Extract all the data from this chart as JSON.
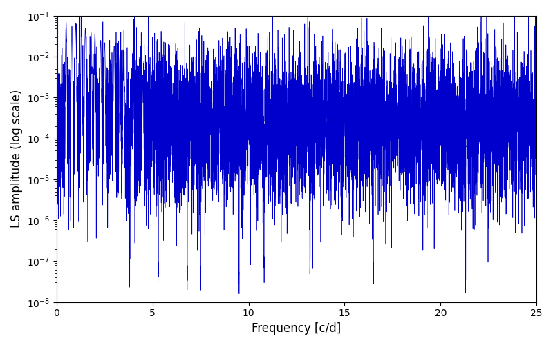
{
  "xlabel": "Frequency [c/d]",
  "ylabel": "LS amplitude (log scale)",
  "xlim": [
    0,
    25
  ],
  "ylim": [
    1e-08,
    0.1
  ],
  "line_color": "#0000cc",
  "line_width": 0.5,
  "background_color": "#ffffff",
  "xticks": [
    0,
    5,
    10,
    15,
    20,
    25
  ],
  "seed": 12345,
  "n_points": 8000,
  "freq_max": 25.0
}
